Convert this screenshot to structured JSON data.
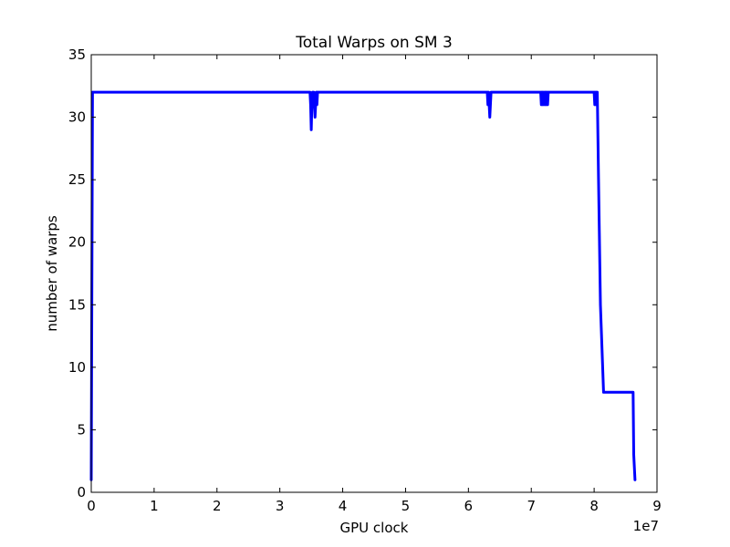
{
  "chart_data": {
    "type": "line",
    "title": "Total Warps on SM 3",
    "xlabel": "GPU clock",
    "ylabel": "number of warps",
    "x_offset_label": "1e7",
    "xlim": [
      0,
      9
    ],
    "ylim": [
      0,
      35
    ],
    "x_ticks": [
      0,
      1,
      2,
      3,
      4,
      5,
      6,
      7,
      8,
      9
    ],
    "y_ticks": [
      0,
      5,
      10,
      15,
      20,
      25,
      30,
      35
    ],
    "grid": false,
    "legend": "none",
    "series": [
      {
        "color": "#0000ff",
        "x": [
          0.0,
          0.02,
          3.48,
          3.49,
          3.5,
          3.51,
          3.52,
          3.53,
          3.54,
          3.55,
          3.56,
          3.57,
          3.58,
          3.59,
          3.6,
          6.3,
          6.31,
          6.32,
          6.33,
          6.34,
          6.35,
          6.36,
          7.15,
          7.16,
          7.17,
          7.18,
          7.19,
          7.2,
          7.21,
          7.22,
          7.23,
          7.24,
          7.25,
          7.26,
          7.27,
          8.0,
          8.01,
          8.02,
          8.03,
          8.04,
          8.05,
          8.07,
          8.1,
          8.15,
          8.62,
          8.63,
          8.65
        ],
        "values": [
          1,
          32,
          32,
          31,
          29,
          31,
          32,
          32,
          32,
          31,
          30,
          31,
          32,
          31,
          32,
          32,
          31,
          32,
          31,
          30,
          31,
          32,
          32,
          31,
          32,
          31,
          32,
          31,
          32,
          31,
          32,
          31,
          32,
          31,
          32,
          32,
          31,
          32,
          31,
          32,
          32,
          25,
          15,
          8,
          8,
          3,
          1
        ]
      }
    ]
  }
}
